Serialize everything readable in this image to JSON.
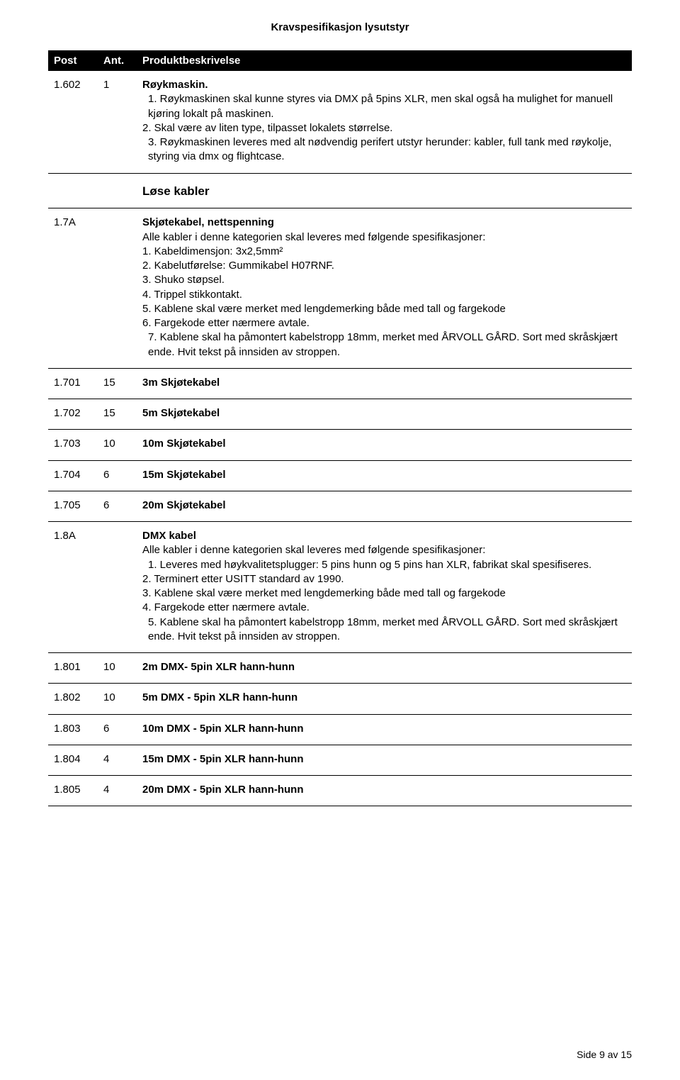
{
  "doc_title": "Kravspesifikasjon lysutstyr",
  "header": {
    "post": "Post",
    "ant": "Ant.",
    "desc": "Produktbeskrivelse"
  },
  "rows": [
    {
      "post": "1.602",
      "ant": "1",
      "title": "Røykmaskin.",
      "lines": [
        "1. Røykmaskinen skal kunne styres via DMX på 5pins XLR, men skal også ha mulighet for manuell kjøring lokalt på maskinen.",
        "2. Skal være av liten type, tilpasset lokalets størrelse.",
        "3. Røykmaskinen leveres med alt nødvendig perifert utstyr herunder: kabler, full tank med røykolje, styring via dmx og flightcase."
      ]
    }
  ],
  "section_lose_label": "Løse kabler",
  "row_7a": {
    "post": "1.7A",
    "title": "Skjøtekabel, nettspenning",
    "lead": "Alle kabler i denne kategorien skal leveres med følgende spesifikasjoner:",
    "lines": [
      "1. Kabeldimensjon: 3x2,5mm²",
      "2. Kabelutførelse:  Gummikabel H07RNF.",
      "3. Shuko støpsel.",
      "4. Trippel stikkontakt.",
      "5. Kablene skal være merket med lengdemerking både med tall og fargekode",
      "6. Fargekode etter nærmere avtale.",
      "7. Kablene skal ha påmontert kabelstropp 18mm, merket med ÅRVOLL GÅRD. Sort med skråskjært ende. Hvit tekst på innsiden av stroppen."
    ]
  },
  "row_1701": {
    "post": "1.701",
    "ant": "15",
    "desc": "3m Skjøtekabel"
  },
  "row_1702": {
    "post": "1.702",
    "ant": "15",
    "desc": "5m Skjøtekabel"
  },
  "row_1703": {
    "post": "1.703",
    "ant": "10",
    "desc": "10m Skjøtekabel"
  },
  "row_1704": {
    "post": "1.704",
    "ant": "6",
    "desc": "15m Skjøtekabel"
  },
  "row_1705": {
    "post": "1.705",
    "ant": "6",
    "desc": "20m Skjøtekabel"
  },
  "row_8a": {
    "post": "1.8A",
    "title": "DMX kabel",
    "lead": "Alle kabler i denne kategorien skal leveres med følgende spesifikasjoner:",
    "lines": [
      "1. Leveres med høykvalitetsplugger: 5 pins hunn og 5 pins han XLR, fabrikat skal spesifiseres.",
      "2. Terminert etter USITT standard av 1990.",
      "3. Kablene skal være merket med lengdemerking både med tall og fargekode",
      "4. Fargekode etter nærmere avtale.",
      "5. Kablene skal ha påmontert kabelstropp 18mm, merket med ÅRVOLL GÅRD. Sort med skråskjært ende. Hvit tekst på innsiden av stroppen."
    ]
  },
  "row_1801": {
    "post": "1.801",
    "ant": "10",
    "desc": "2m DMX- 5pin XLR hann-hunn"
  },
  "row_1802": {
    "post": "1.802",
    "ant": "10",
    "desc": "5m DMX - 5pin XLR hann-hunn"
  },
  "row_1803": {
    "post": "1.803",
    "ant": "6",
    "desc": "10m DMX - 5pin XLR hann-hunn"
  },
  "row_1804": {
    "post": "1.804",
    "ant": "4",
    "desc": "15m DMX - 5pin XLR hann-hunn"
  },
  "row_1805": {
    "post": "1.805",
    "ant": "4",
    "desc": "20m DMX - 5pin XLR hann-hunn"
  },
  "footer": "Side 9 av 15"
}
